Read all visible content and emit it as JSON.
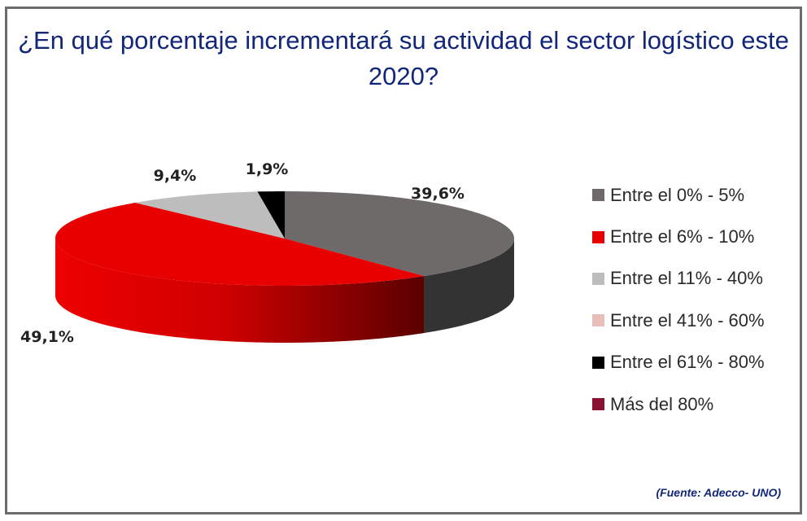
{
  "title": "¿En qué porcentaje incrementará su actividad el sector logístico este 2020?",
  "source": "(Fuente: Adecco- UNO)",
  "chart_data": {
    "type": "pie",
    "title": "¿En qué porcentaje incrementará su actividad el sector logístico este 2020?",
    "categories": [
      "Entre el 0% - 5%",
      "Entre el 6% - 10%",
      "Entre el 11% - 40%",
      "Entre el 41% - 60%",
      "Entre el 61% - 80%",
      "Más del 80%"
    ],
    "values": [
      39.6,
      49.1,
      9.4,
      0,
      1.9,
      0
    ],
    "labels": [
      "39,6%",
      "49,1%",
      "9,4%",
      "",
      "1,9%",
      ""
    ],
    "colors": [
      "#6e6a6a",
      "#e80000",
      "#bdbdbd",
      "#e8bfb8",
      "#000000",
      "#8a1030"
    ],
    "side_colors": [
      "#333333",
      "#a00000",
      "#8a8a8a",
      "#b09090",
      "#000000",
      "#5a0a20"
    ],
    "legend_position": "right",
    "style": "3d"
  }
}
